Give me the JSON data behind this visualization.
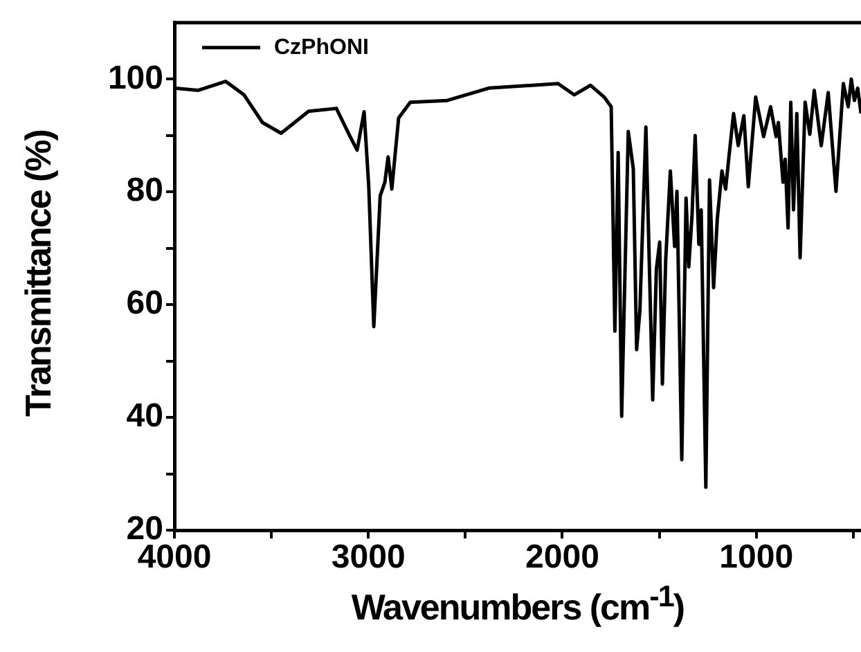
{
  "chart_data": {
    "type": "line",
    "xlabel": "Wavenumbers (cm$^{-1}$)",
    "ylabel": "Transmittance (%)",
    "xlim": [
      4000,
      460
    ],
    "ylim": [
      20,
      110
    ],
    "xticks": [
      4000,
      {
        "value": 3500,
        "label": null
      },
      3000,
      {
        "value": 2500,
        "label": null
      },
      2000,
      {
        "value": 1500,
        "label": null
      },
      1000,
      {
        "value": 500,
        "label": null
      }
    ],
    "yticks": [
      20,
      {
        "value": 30,
        "label": null
      },
      40,
      {
        "value": 50,
        "label": null
      },
      60,
      {
        "value": 70,
        "label": null
      },
      80,
      {
        "value": 90,
        "label": null
      },
      100
    ],
    "grid": false,
    "legend": "top left",
    "marker": "none",
    "line_style": "solid",
    "series": [
      {
        "name": "CzPhONI",
        "color": "#000000",
        "x": [
          4000,
          3879,
          3736,
          3641,
          3546,
          3450,
          3308,
          3165,
          3094,
          3058,
          3022,
          2998,
          2972,
          2939,
          2915,
          2898,
          2879,
          2844,
          2784,
          2594,
          2379,
          2022,
          1939,
          1855,
          1784,
          1748,
          1729,
          1712,
          1694,
          1660,
          1634,
          1617,
          1600,
          1569,
          1534,
          1515,
          1498,
          1484,
          1467,
          1443,
          1421,
          1409,
          1384,
          1362,
          1348,
          1331,
          1315,
          1296,
          1284,
          1260,
          1241,
          1220,
          1201,
          1177,
          1158,
          1141,
          1117,
          1093,
          1064,
          1041,
          1003,
          962,
          926,
          898,
          886,
          862,
          851,
          836,
          822,
          808,
          791,
          774,
          748,
          724,
          701,
          665,
          629,
          589,
          551,
          526,
          510,
          494,
          477,
          460
        ],
        "values": [
          98.4,
          98.0,
          99.6,
          97.2,
          92.3,
          90.4,
          94.3,
          94.8,
          89.8,
          87.4,
          94.2,
          81,
          56.1,
          79.3,
          81.7,
          86.2,
          80.5,
          93.1,
          95.9,
          96.2,
          98.4,
          99.2,
          97.2,
          98.9,
          96.8,
          95.1,
          55.3,
          87,
          40.2,
          90.7,
          84.1,
          52,
          59,
          91.5,
          43.1,
          66.3,
          71.1,
          45.9,
          67.9,
          83.7,
          70.3,
          80.1,
          32.5,
          78.9,
          66.7,
          76.0,
          90,
          70.7,
          76.8,
          27.6,
          82.1,
          63,
          75.2,
          83.7,
          80.5,
          86.2,
          93.9,
          88.2,
          93.5,
          80.9,
          96.8,
          89.8,
          95.1,
          89.8,
          92.3,
          81.7,
          85.8,
          73.6,
          95.9,
          76.8,
          93.9,
          68.3,
          95.9,
          90.2,
          98,
          88.2,
          97.6,
          80.1,
          99.2,
          95.1,
          100,
          96.2,
          98.4,
          93.9
        ]
      }
    ]
  }
}
